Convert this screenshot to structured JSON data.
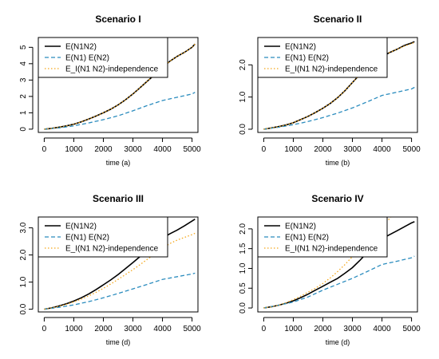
{
  "chart_data": [
    {
      "type": "line",
      "title": "Scenario I",
      "xlabel": "time (a)",
      "ylabel": "",
      "xlim": [
        -200,
        5200
      ],
      "ylim": [
        -0.2,
        5.6
      ],
      "xticks": [
        0,
        1000,
        2000,
        3000,
        4000,
        5000
      ],
      "yticks": [
        0,
        1,
        2,
        3,
        4,
        5
      ],
      "ytick_labels": [
        "0",
        "1",
        "2",
        "3",
        "4",
        "5"
      ],
      "legend": {
        "position": "top-left"
      },
      "series": [
        {
          "name": "E(N1N2)",
          "color": "#000000",
          "dash": "solid",
          "x": [
            0,
            250,
            500,
            750,
            1000,
            1250,
            1500,
            1750,
            2000,
            2250,
            2500,
            2750,
            3000,
            3250,
            3500,
            3750,
            4000,
            4250,
            4500,
            4750,
            5000,
            5100
          ],
          "y": [
            0,
            0.05,
            0.12,
            0.2,
            0.3,
            0.45,
            0.62,
            0.8,
            1.0,
            1.22,
            1.48,
            1.8,
            2.15,
            2.55,
            2.95,
            3.35,
            3.75,
            4.15,
            4.45,
            4.7,
            5.0,
            5.2
          ]
        },
        {
          "name": "E(N1) E(N2)",
          "color": "#2b8cbe",
          "dash": "dashed",
          "x": [
            0,
            500,
            1000,
            1500,
            2000,
            2500,
            3000,
            3500,
            4000,
            4500,
            5000,
            5100
          ],
          "y": [
            0,
            0.08,
            0.2,
            0.38,
            0.58,
            0.82,
            1.12,
            1.45,
            1.75,
            1.95,
            2.15,
            2.25
          ]
        },
        {
          "name": "E_I(N1 N2)-independence",
          "color": "#f5a81c",
          "dash": "dotted",
          "x": [
            0,
            250,
            500,
            750,
            1000,
            1250,
            1500,
            1750,
            2000,
            2250,
            2500,
            2750,
            3000,
            3250,
            3500,
            3750,
            4000,
            4250,
            4500,
            4750,
            5000,
            5100
          ],
          "y": [
            0,
            0.05,
            0.12,
            0.2,
            0.3,
            0.45,
            0.62,
            0.8,
            1.0,
            1.22,
            1.48,
            1.8,
            2.15,
            2.55,
            2.95,
            3.35,
            3.75,
            4.15,
            4.45,
            4.7,
            5.0,
            5.2
          ]
        }
      ]
    },
    {
      "type": "line",
      "title": "Scenario II",
      "xlabel": "time (b)",
      "ylabel": "",
      "xlim": [
        -200,
        5200
      ],
      "ylim": [
        -0.1,
        2.85
      ],
      "xticks": [
        0,
        1000,
        2000,
        3000,
        4000,
        5000
      ],
      "yticks": [
        0,
        1,
        2
      ],
      "ytick_labels": [
        "0.0",
        "1.0",
        "2.0"
      ],
      "legend": {
        "position": "top-left"
      },
      "series": [
        {
          "name": "E(N1N2)",
          "color": "#000000",
          "dash": "solid",
          "x": [
            0,
            250,
            500,
            750,
            1000,
            1250,
            1500,
            1750,
            2000,
            2250,
            2500,
            2750,
            3000,
            3250,
            3500,
            3750,
            4000,
            4250,
            4500,
            4750,
            5000,
            5100
          ],
          "y": [
            0,
            0.04,
            0.08,
            0.13,
            0.2,
            0.3,
            0.4,
            0.52,
            0.65,
            0.8,
            0.98,
            1.2,
            1.45,
            1.7,
            1.95,
            2.1,
            2.25,
            2.38,
            2.48,
            2.6,
            2.68,
            2.72
          ]
        },
        {
          "name": "E(N1) E(N2)",
          "color": "#2b8cbe",
          "dash": "dashed",
          "x": [
            0,
            500,
            1000,
            1500,
            2000,
            2500,
            3000,
            3500,
            4000,
            4500,
            5000,
            5100
          ],
          "y": [
            0,
            0.06,
            0.14,
            0.24,
            0.36,
            0.5,
            0.66,
            0.85,
            1.05,
            1.15,
            1.25,
            1.3
          ]
        },
        {
          "name": "E_I(N1 N2)-independence",
          "color": "#f5a81c",
          "dash": "dotted",
          "x": [
            0,
            250,
            500,
            750,
            1000,
            1250,
            1500,
            1750,
            2000,
            2250,
            2500,
            2750,
            3000,
            3250,
            3500,
            3750,
            4000,
            4250,
            4500,
            4750,
            5000,
            5100
          ],
          "y": [
            0,
            0.04,
            0.08,
            0.13,
            0.2,
            0.3,
            0.4,
            0.52,
            0.65,
            0.8,
            0.98,
            1.2,
            1.45,
            1.7,
            1.95,
            2.1,
            2.25,
            2.38,
            2.48,
            2.58,
            2.66,
            2.7
          ]
        }
      ]
    },
    {
      "type": "line",
      "title": "Scenario III",
      "xlabel": "time (d)",
      "ylabel": "",
      "xlim": [
        -200,
        5200
      ],
      "ylim": [
        -0.1,
        3.4
      ],
      "xticks": [
        0,
        1000,
        2000,
        3000,
        4000,
        5000
      ],
      "yticks": [
        0,
        1,
        2,
        3
      ],
      "ytick_labels": [
        "0.0",
        "1.0",
        "2.0",
        "3.0"
      ],
      "legend": {
        "position": "top-left"
      },
      "series": [
        {
          "name": "E(N1N2)",
          "color": "#000000",
          "dash": "solid",
          "x": [
            0,
            250,
            500,
            750,
            1000,
            1250,
            1500,
            1750,
            2000,
            2250,
            2500,
            2750,
            3000,
            3250,
            3500,
            3750,
            4000,
            4250,
            4500,
            4750,
            5000,
            5100
          ],
          "y": [
            0,
            0.05,
            0.12,
            0.2,
            0.3,
            0.42,
            0.56,
            0.72,
            0.9,
            1.08,
            1.28,
            1.5,
            1.72,
            1.95,
            2.2,
            2.42,
            2.62,
            2.78,
            2.92,
            3.08,
            3.25,
            3.32
          ]
        },
        {
          "name": "E(N1) E(N2)",
          "color": "#2b8cbe",
          "dash": "dashed",
          "x": [
            0,
            500,
            1000,
            1500,
            2000,
            2500,
            3000,
            3500,
            4000,
            4500,
            5000,
            5100
          ],
          "y": [
            0,
            0.07,
            0.16,
            0.28,
            0.42,
            0.58,
            0.75,
            0.92,
            1.1,
            1.2,
            1.3,
            1.33
          ]
        },
        {
          "name": "E_I(N1 N2)-independence",
          "color": "#f5a81c",
          "dash": "dotted",
          "x": [
            0,
            250,
            500,
            750,
            1000,
            1250,
            1500,
            1750,
            2000,
            2250,
            2500,
            2750,
            3000,
            3250,
            3500,
            3750,
            4000,
            4250,
            4500,
            4750,
            5000,
            5100
          ],
          "y": [
            0,
            0.05,
            0.11,
            0.18,
            0.27,
            0.37,
            0.49,
            0.62,
            0.77,
            0.93,
            1.1,
            1.28,
            1.46,
            1.65,
            1.85,
            2.05,
            2.25,
            2.42,
            2.55,
            2.65,
            2.75,
            2.8
          ]
        }
      ]
    },
    {
      "type": "line",
      "title": "Scenario IV",
      "xlabel": "time (d)",
      "ylabel": "",
      "xlim": [
        -200,
        5200
      ],
      "ylim": [
        -0.1,
        2.3
      ],
      "xticks": [
        0,
        1000,
        2000,
        3000,
        4000,
        5000
      ],
      "yticks": [
        0,
        0.5,
        1,
        1.5,
        2
      ],
      "ytick_labels": [
        "0.0",
        "0.5",
        "1.0",
        "1.5",
        "2.0"
      ],
      "legend": {
        "position": "top-left"
      },
      "series": [
        {
          "name": "E(N1N2)",
          "color": "#000000",
          "dash": "solid",
          "x": [
            0,
            250,
            500,
            750,
            1000,
            1250,
            1500,
            1750,
            2000,
            2250,
            2500,
            2750,
            3000,
            3250,
            3500,
            3750,
            4000,
            4250,
            4500,
            4750,
            5000,
            5100
          ],
          "y": [
            0,
            0.03,
            0.07,
            0.12,
            0.18,
            0.26,
            0.35,
            0.45,
            0.55,
            0.65,
            0.75,
            0.88,
            1.02,
            1.2,
            1.4,
            1.6,
            1.75,
            1.85,
            1.95,
            2.05,
            2.15,
            2.18
          ]
        },
        {
          "name": "E(N1) E(N2)",
          "color": "#2b8cbe",
          "dash": "dashed",
          "x": [
            0,
            500,
            1000,
            1500,
            2000,
            2500,
            3000,
            3500,
            4000,
            4500,
            5000,
            5100
          ],
          "y": [
            0,
            0.07,
            0.15,
            0.28,
            0.45,
            0.6,
            0.75,
            0.92,
            1.1,
            1.18,
            1.27,
            1.31
          ]
        },
        {
          "name": "E_I(N1 N2)-independence",
          "color": "#f5a81c",
          "dash": "dotted",
          "x": [
            0,
            250,
            500,
            750,
            1000,
            1250,
            1500,
            1750,
            2000,
            2250,
            2500,
            2750,
            3000,
            3250,
            3500,
            3750,
            4000,
            4250,
            4300
          ],
          "y": [
            0,
            0.03,
            0.07,
            0.13,
            0.21,
            0.3,
            0.4,
            0.5,
            0.62,
            0.76,
            0.92,
            1.1,
            1.3,
            1.52,
            1.75,
            1.95,
            2.12,
            2.25,
            2.3
          ]
        }
      ]
    }
  ]
}
